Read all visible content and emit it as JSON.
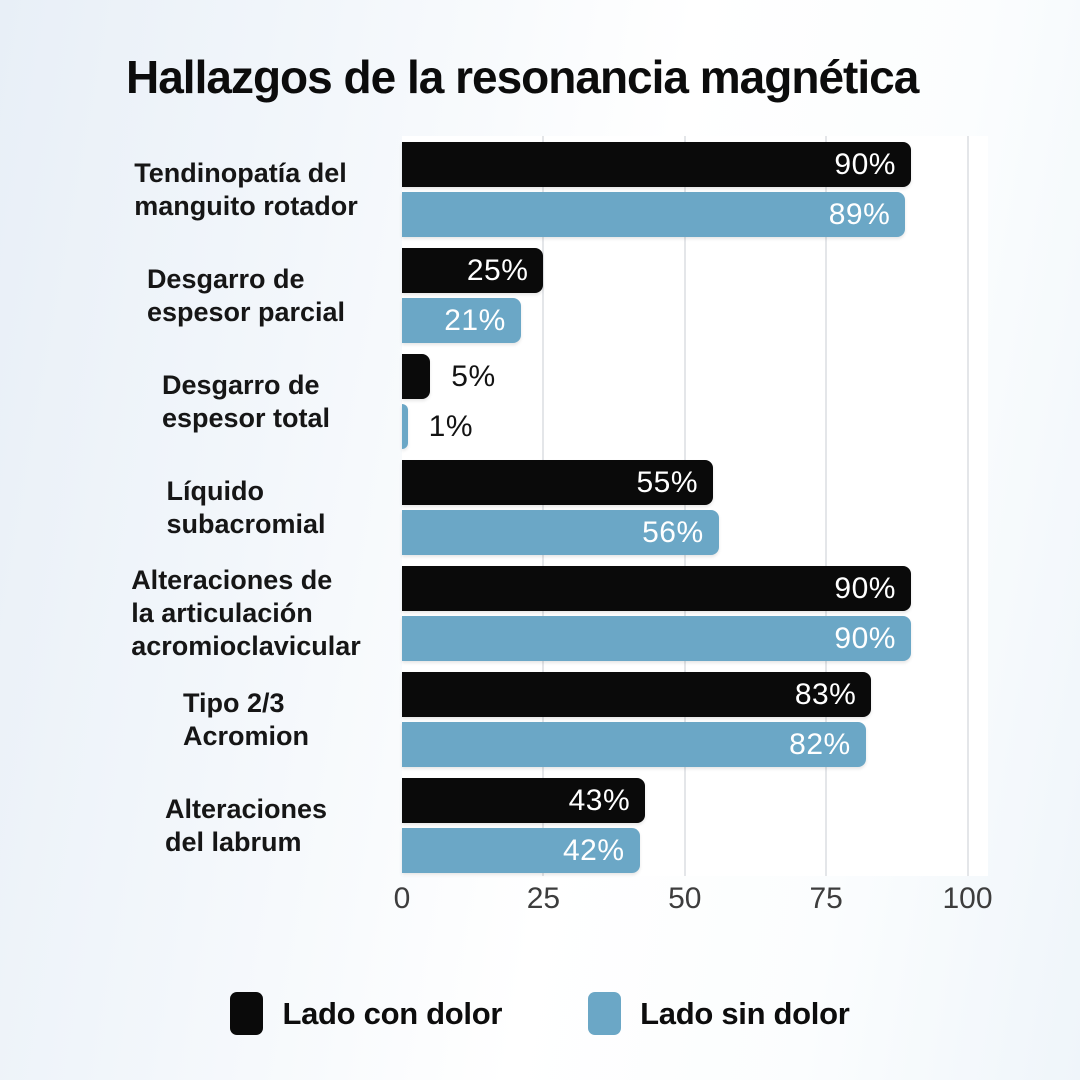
{
  "title": "Hallazgos de la resonancia magnética",
  "chart_data": {
    "type": "bar",
    "orientation": "horizontal",
    "title": "Hallazgos de la resonancia magnética",
    "categories": [
      "Tendinopatía del\nmanguito rotador",
      "Desgarro de\nespesor parcial",
      "Desgarro de\nespesor total",
      "Líquido\nsubacromial",
      "Alteraciones de\nla articulación\nacromioclavicular",
      "Tipo 2/3\nAcromion",
      "Alteraciones\ndel labrum"
    ],
    "series": [
      {
        "name": "Lado con dolor",
        "color": "#0a0a0a",
        "values": [
          90,
          25,
          5,
          55,
          90,
          83,
          43
        ]
      },
      {
        "name": "Lado sin dolor",
        "color": "#6ba7c6",
        "values": [
          89,
          21,
          1,
          56,
          90,
          82,
          42
        ]
      }
    ],
    "value_suffix": "%",
    "xlim": [
      0,
      100
    ],
    "x_ticks": [
      0,
      25,
      50,
      75,
      100
    ],
    "grid": true,
    "gridline_color": "#e4e6e9",
    "plot_background": "#ffffff",
    "legend_position": "bottom"
  }
}
